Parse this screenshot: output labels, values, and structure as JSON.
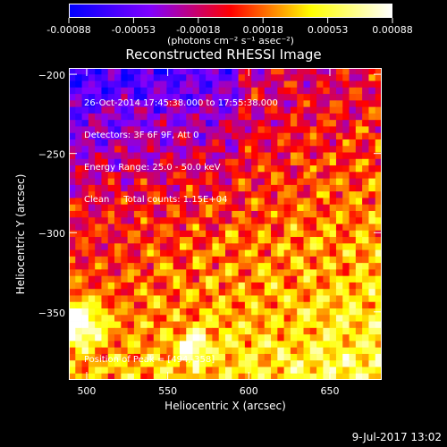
{
  "colorbar": {
    "ticks": [
      "-0.00088",
      "-0.00053",
      "-0.00018",
      "0.00018",
      "0.00053",
      "0.00088"
    ],
    "units": "(photons cm⁻² s⁻¹ asec⁻²)"
  },
  "title": "Reconstructed RHESSI Image",
  "overlay": {
    "line1": "26-Oct-2014 17:45:38.000 to 17:55:38.000",
    "line2": "Detectors: 3F 6F 9F, Att 0",
    "line3": "Energy Range: 25.0 - 50.0 keV",
    "line4": "Clean     Total counts: 1.15E+04",
    "peak": "Position of Peak = [494,-358]"
  },
  "footer": {
    "timestamp": "9-Jul-2017 13:02"
  },
  "chart_data": {
    "type": "heatmap",
    "title": "Reconstructed RHESSI Image",
    "xlabel": "Heliocentric X (arcsec)",
    "ylabel": "Heliocentric Y (arcsec)",
    "xlim": [
      489,
      682
    ],
    "ylim": [
      -393,
      -196
    ],
    "x_ticks": [
      500,
      550,
      600,
      650
    ],
    "y_ticks": [
      -200,
      -250,
      -300,
      -350
    ],
    "colorbar_range": [
      -0.00088,
      0.00088
    ],
    "colormap": [
      "#0000ff",
      "#8000ff",
      "#ff0000",
      "#ffff00",
      "#ffffff"
    ],
    "peak_position": [
      494,
      -358
    ]
  }
}
